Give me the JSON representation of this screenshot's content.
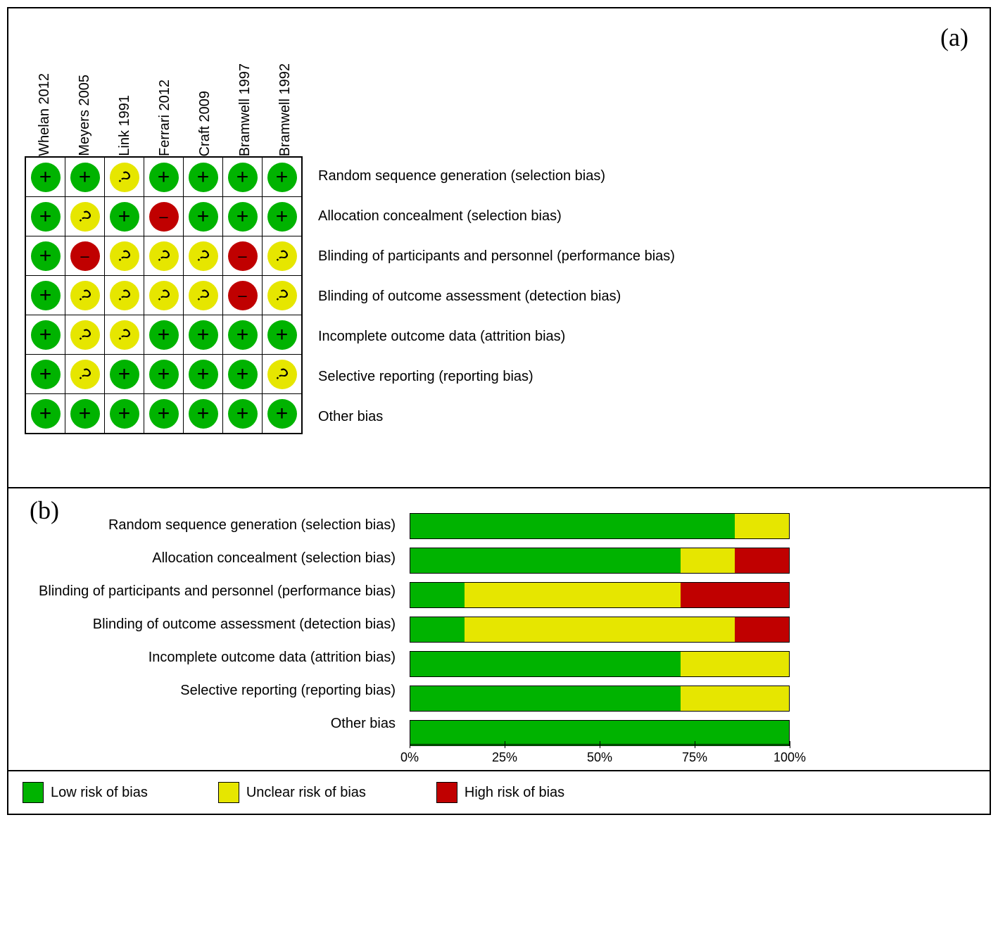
{
  "panelA": {
    "label": "(a)",
    "studies": [
      "Whelan 2012",
      "Meyers 2005",
      "Link 1991",
      "Ferrari 2012",
      "Craft 2009",
      "Bramwell 1997",
      "Bramwell 1992"
    ],
    "domains": [
      "Random sequence generation (selection bias)",
      "Allocation concealment (selection bias)",
      "Blinding of participants and personnel (performance bias)",
      "Blinding of outcome assessment (detection bias)",
      "Incomplete outcome data (attrition bias)",
      "Selective reporting (reporting bias)",
      "Other bias"
    ],
    "grid": [
      [
        "low",
        "low",
        "unclear",
        "low",
        "low",
        "low",
        "low"
      ],
      [
        "low",
        "unclear",
        "low",
        "high",
        "low",
        "low",
        "low"
      ],
      [
        "low",
        "high",
        "unclear",
        "unclear",
        "unclear",
        "high",
        "unclear"
      ],
      [
        "low",
        "unclear",
        "unclear",
        "unclear",
        "unclear",
        "high",
        "unclear"
      ],
      [
        "low",
        "unclear",
        "unclear",
        "low",
        "low",
        "low",
        "low"
      ],
      [
        "low",
        "unclear",
        "low",
        "low",
        "low",
        "low",
        "unclear"
      ],
      [
        "low",
        "low",
        "low",
        "low",
        "low",
        "low",
        "low"
      ]
    ],
    "symbols": {
      "low": "+",
      "unclear": "?",
      "high": "−"
    },
    "colors": {
      "low": "#00b300",
      "unclear": "#e6e600",
      "high": "#c00000"
    }
  },
  "panelB": {
    "label": "(b)",
    "domains": [
      "Random sequence generation (selection bias)",
      "Allocation concealment (selection bias)",
      "Blinding of participants and personnel (performance bias)",
      "Blinding of outcome assessment (detection bias)",
      "Incomplete outcome data (attrition bias)",
      "Selective reporting (reporting bias)",
      "Other bias"
    ],
    "bars": [
      {
        "low": 85.7,
        "unclear": 14.3,
        "high": 0
      },
      {
        "low": 71.4,
        "unclear": 14.3,
        "high": 14.3
      },
      {
        "low": 14.3,
        "unclear": 57.1,
        "high": 28.6
      },
      {
        "low": 14.3,
        "unclear": 71.4,
        "high": 14.3
      },
      {
        "low": 71.4,
        "unclear": 28.6,
        "high": 0
      },
      {
        "low": 71.4,
        "unclear": 28.6,
        "high": 0
      },
      {
        "low": 100,
        "unclear": 0,
        "high": 0
      }
    ],
    "axis": {
      "ticks": [
        0,
        25,
        50,
        75,
        100
      ],
      "labels": [
        "0%",
        "25%",
        "50%",
        "75%",
        "100%"
      ]
    },
    "bar_border_color": "#000000",
    "label_fontsize": 20
  },
  "legend": {
    "items": [
      {
        "key": "low",
        "label": "Low risk of bias"
      },
      {
        "key": "unclear",
        "label": "Unclear risk of bias"
      },
      {
        "key": "high",
        "label": "High risk of bias"
      }
    ]
  }
}
